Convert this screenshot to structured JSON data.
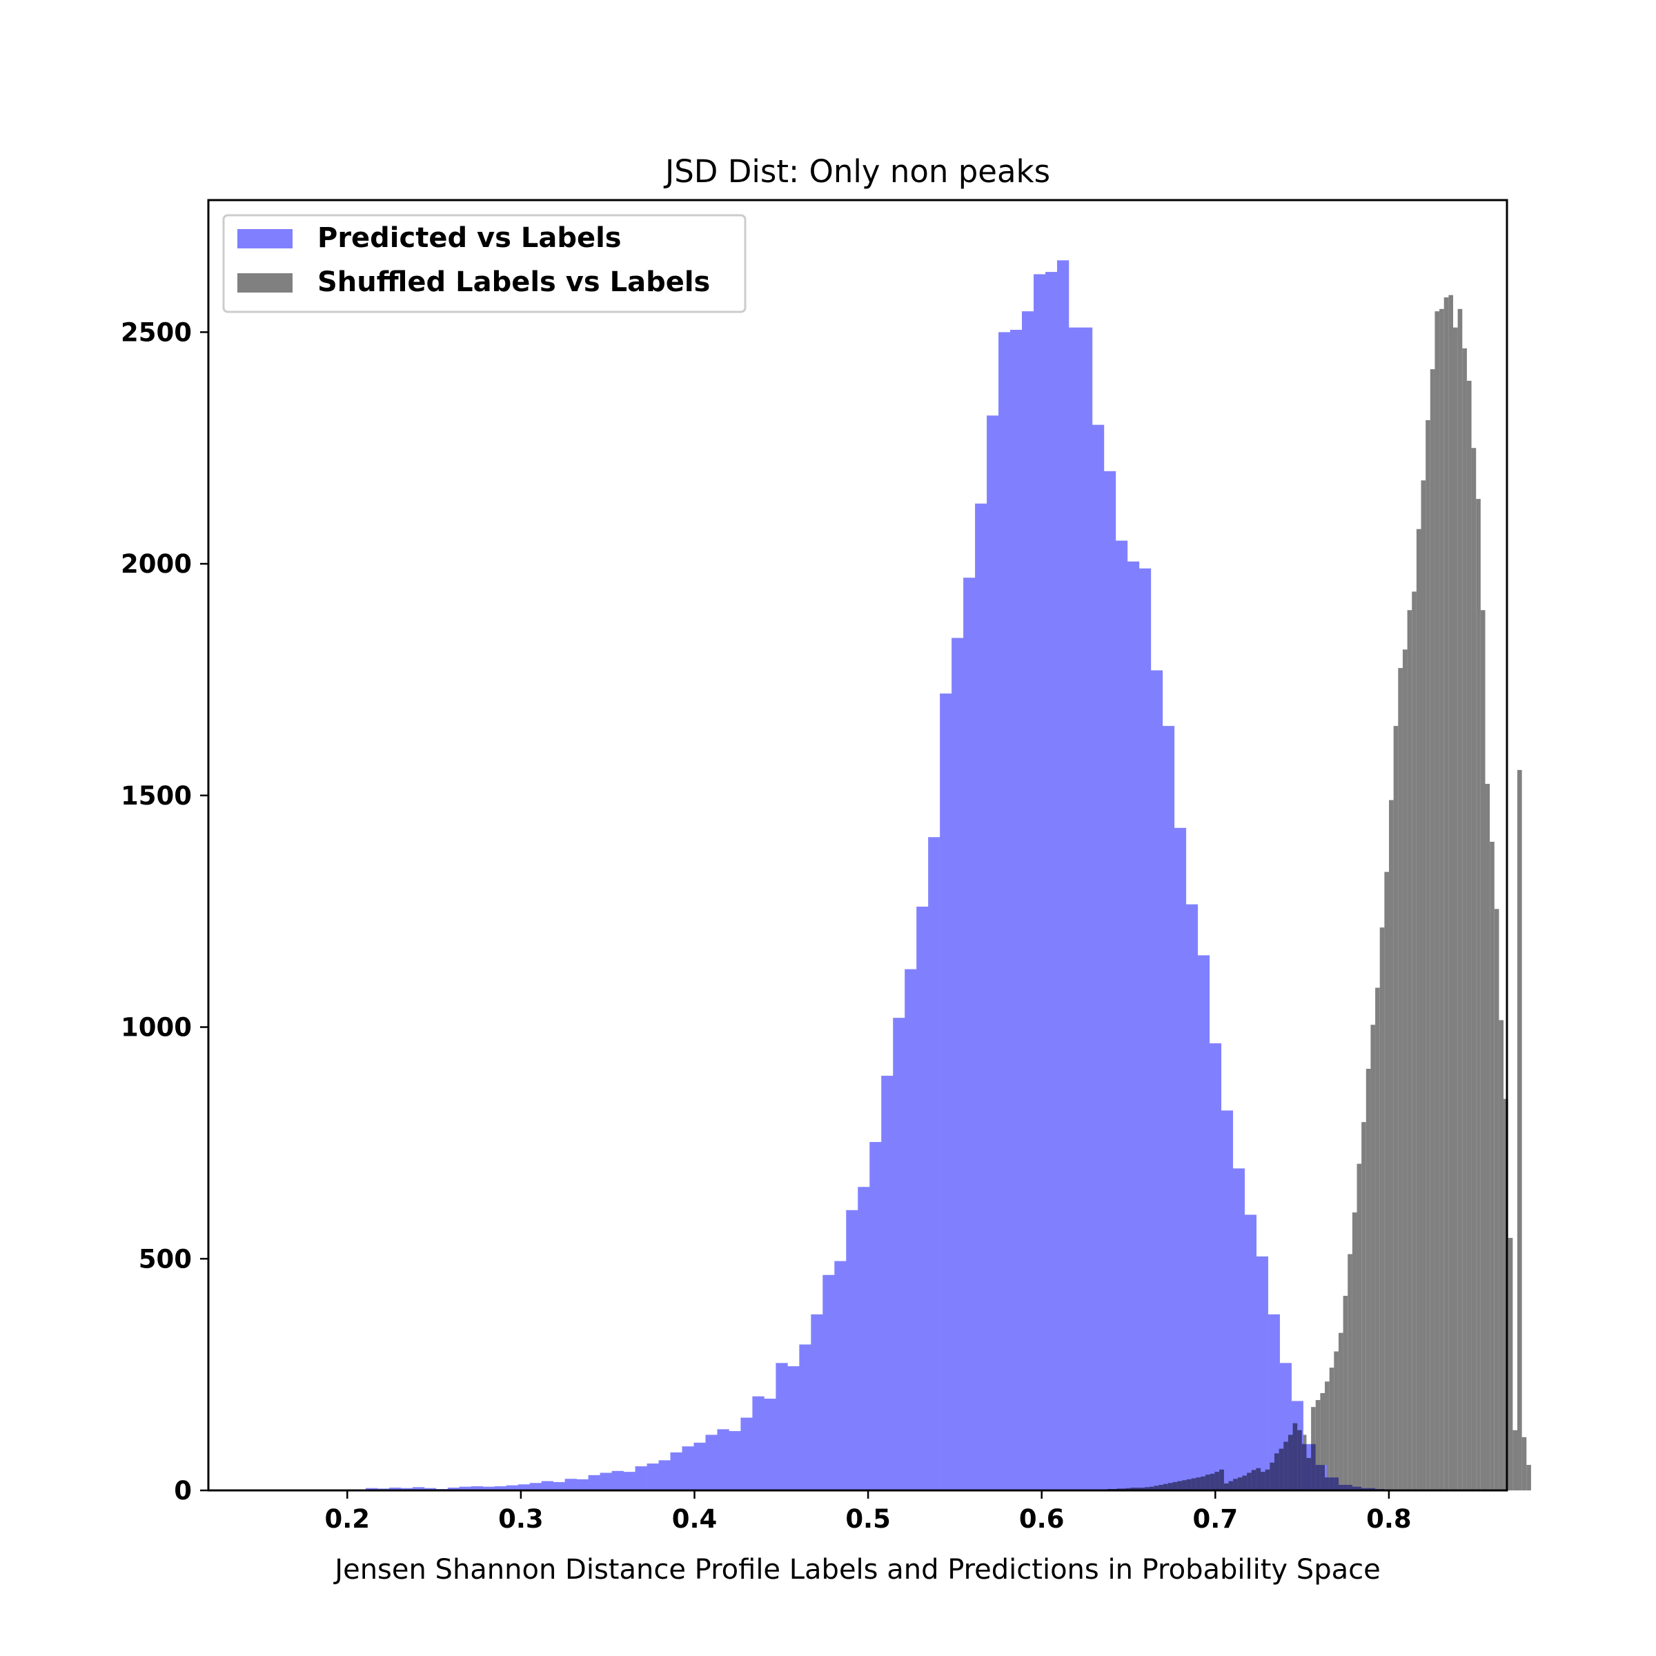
{
  "chart_data": {
    "type": "histogram",
    "title": "JSD Dist: Only non peaks",
    "xlabel": "Jensen Shannon Distance Profile Labels and Predictions in Probability Space",
    "ylabel": "",
    "xlim": [
      0.12,
      0.868
    ],
    "ylim": [
      0,
      2785
    ],
    "xticks": [
      0.2,
      0.3,
      0.4,
      0.5,
      0.6,
      0.7,
      0.8
    ],
    "xtick_labels": [
      "0.2",
      "0.3",
      "0.4",
      "0.5",
      "0.6",
      "0.7",
      "0.8"
    ],
    "yticks": [
      0,
      500,
      1000,
      1500,
      2000,
      2500
    ],
    "ytick_labels": [
      "0",
      "500",
      "1000",
      "1500",
      "2000",
      "2500"
    ],
    "legend_position": "upper-left",
    "series": [
      {
        "name": "Predicted vs Labels",
        "color": "#8080ff",
        "bin_start": 0.2106,
        "bin_width": 0.00675,
        "counts": [
          5,
          4,
          6,
          5,
          7,
          5,
          3,
          6,
          8,
          9,
          8,
          9,
          11,
          13,
          16,
          20,
          18,
          25,
          24,
          33,
          38,
          42,
          40,
          52,
          58,
          65,
          82,
          95,
          103,
          120,
          132,
          128,
          157,
          203,
          198,
          275,
          268,
          315,
          380,
          465,
          495,
          605,
          655,
          752,
          895,
          1020,
          1125,
          1260,
          1410,
          1720,
          1840,
          1970,
          2130,
          2320,
          2500,
          2505,
          2545,
          2625,
          2630,
          2655,
          2510,
          2510,
          2300,
          2200,
          2050,
          2005,
          1990,
          1770,
          1650,
          1430,
          1265,
          1155,
          965,
          820,
          695,
          595,
          505,
          380,
          275,
          193,
          100,
          55,
          28,
          12,
          8,
          5,
          3,
          2
        ]
      },
      {
        "name": "Shuffled Labels vs Labels",
        "color": "#808080",
        "bin_start": 0.705,
        "bin_width": 0.00264,
        "counts": [
          15,
          20,
          25,
          28,
          32,
          38,
          44,
          48,
          40,
          45,
          60,
          80,
          90,
          105,
          120,
          145,
          130,
          120,
          70,
          180,
          195,
          210,
          235,
          265,
          300,
          340,
          420,
          510,
          600,
          705,
          795,
          910,
          1005,
          1085,
          1215,
          1335,
          1490,
          1650,
          1775,
          1815,
          1900,
          1940,
          2075,
          2180,
          2310,
          2420,
          2545,
          2550,
          2575,
          2580,
          2510,
          2550,
          2465,
          2395,
          2250,
          2140,
          1900,
          1525,
          1400,
          1255,
          1015,
          845,
          545,
          130,
          1555,
          115,
          55
        ],
        "comment_low": "tail bins below 0.705",
        "low_tail_start": 0.6325,
        "low_tail_counts": [
          2,
          2,
          3,
          3,
          4,
          4,
          5,
          6,
          6,
          6,
          7,
          8,
          10,
          12,
          14,
          16,
          18,
          20,
          22,
          24,
          26,
          28,
          30,
          34,
          36,
          40,
          45
        ]
      }
    ],
    "overlap_color": "#3d3d80"
  }
}
